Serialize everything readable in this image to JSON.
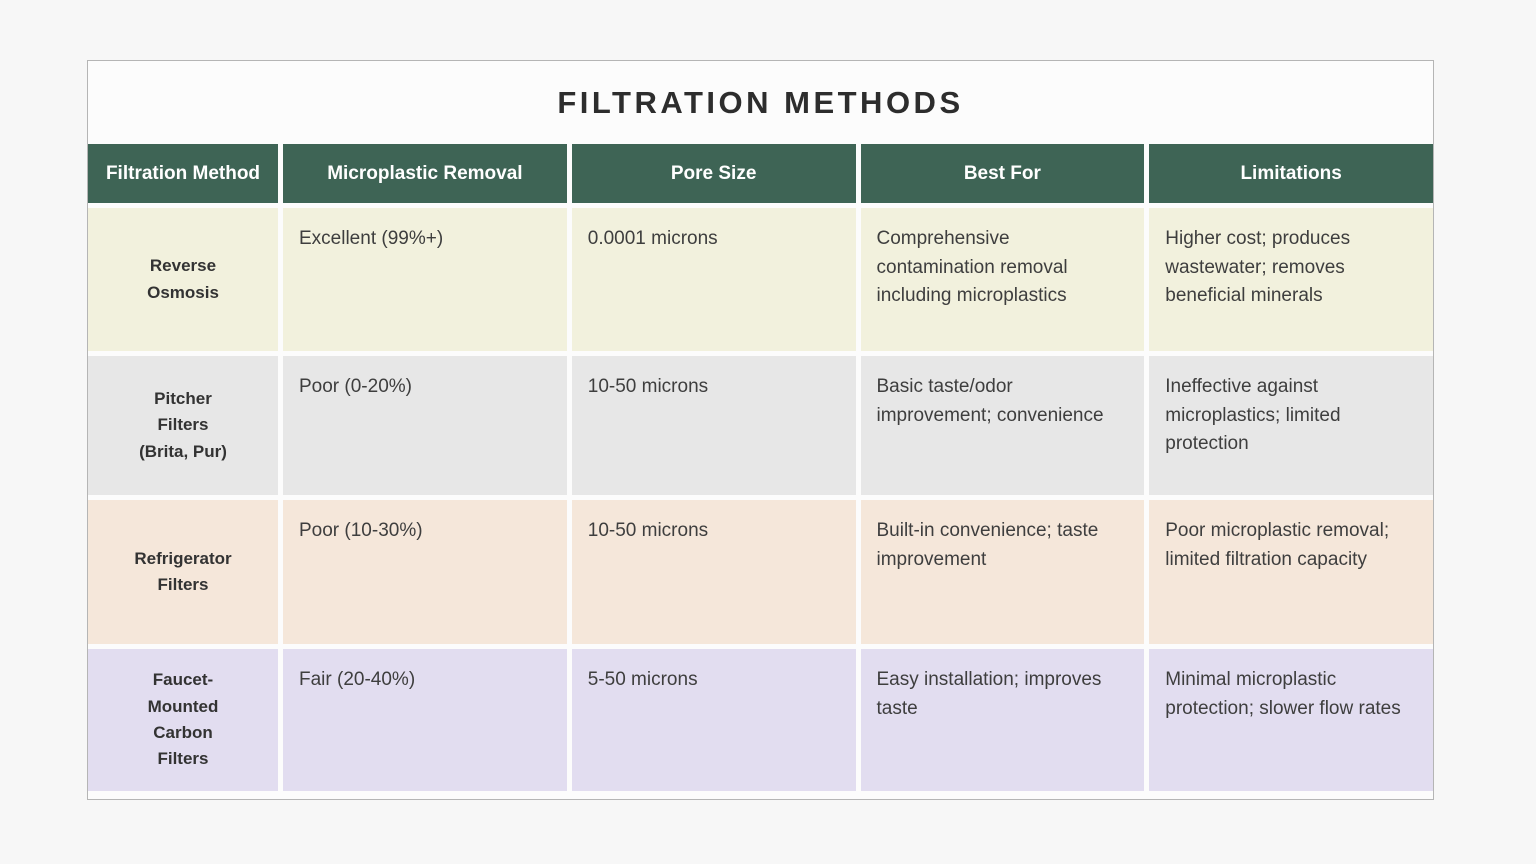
{
  "page": {
    "title": "FILTRATION METHODS"
  },
  "colors": {
    "header_bg": "#3e6455",
    "header_text": "#ffffff",
    "card_bg": "#fcfcfc",
    "page_bg": "#f7f7f7",
    "row_cream": "#f2f1dd",
    "row_gray": "#e7e7e7",
    "row_peach": "#f5e7da",
    "row_lavender": "#e2ddf0"
  },
  "table": {
    "columns": [
      "Filtration Method",
      "Microplastic Removal",
      "Pore Size",
      "Best For",
      "Limitations"
    ],
    "rows": [
      {
        "method": "Reverse\nOsmosis",
        "removal": "Excellent (99%+)",
        "pore_size": "0.0001 microns",
        "best_for": "Comprehensive contamination removal including microplastics",
        "limitations": "Higher cost; produces wastewater; removes beneficial minerals",
        "color": "#f2f1dd"
      },
      {
        "method": "Pitcher\nFilters\n(Brita, Pur)",
        "removal": "Poor (0-20%)",
        "pore_size": "10-50 microns",
        "best_for": "Basic taste/odor improvement; convenience",
        "limitations": "Ineffective against microplastics; limited protection",
        "color": "#e7e7e7"
      },
      {
        "method": "Refrigerator\nFilters",
        "removal": "Poor (10-30%)",
        "pore_size": "10-50 microns",
        "best_for": "Built-in convenience; taste improvement",
        "limitations": "Poor microplastic removal; limited filtration capacity",
        "color": "#f5e7da"
      },
      {
        "method": "Faucet-\nMounted\nCarbon\nFilters",
        "removal": "Fair (20-40%)",
        "pore_size": "5-50 microns",
        "best_for": "Easy installation; improves taste",
        "limitations": "Minimal microplastic protection; slower flow rates",
        "color": "#e2ddf0"
      }
    ]
  }
}
